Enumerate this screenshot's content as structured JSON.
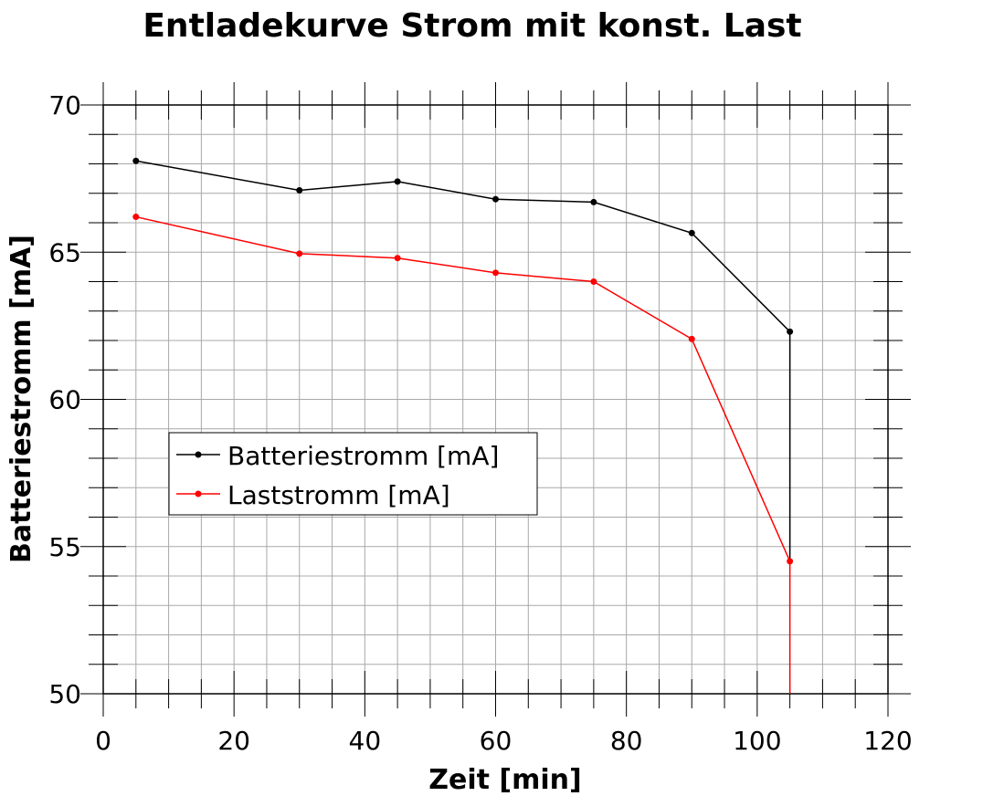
{
  "chart_data": {
    "type": "line",
    "title": "Entladekurve Strom mit konst. Last",
    "xlabel": "Zeit [min]",
    "ylabel": "Batteriestromm [mA]",
    "xlim": [
      0,
      120
    ],
    "ylim": [
      50,
      70
    ],
    "x_ticks": [
      "0",
      "20",
      "40",
      "60",
      "80",
      "100",
      "120"
    ],
    "y_ticks": [
      "50",
      "55",
      "60",
      "65",
      "70"
    ],
    "grid": true,
    "legend_position": "center-left",
    "series": [
      {
        "name": "Batteriestromm [mA]",
        "color": "#000000",
        "x": [
          5,
          30,
          45,
          60,
          75,
          90,
          105,
          105
        ],
        "y": [
          68.1,
          67.1,
          67.4,
          66.8,
          66.7,
          65.65,
          62.3,
          54.5
        ]
      },
      {
        "name": "Laststromm [mA]",
        "color": "#ff0000",
        "x": [
          5,
          30,
          45,
          60,
          75,
          90,
          105,
          105
        ],
        "y": [
          66.2,
          64.95,
          64.8,
          64.3,
          64.0,
          62.05,
          54.5,
          50.0
        ]
      }
    ]
  }
}
